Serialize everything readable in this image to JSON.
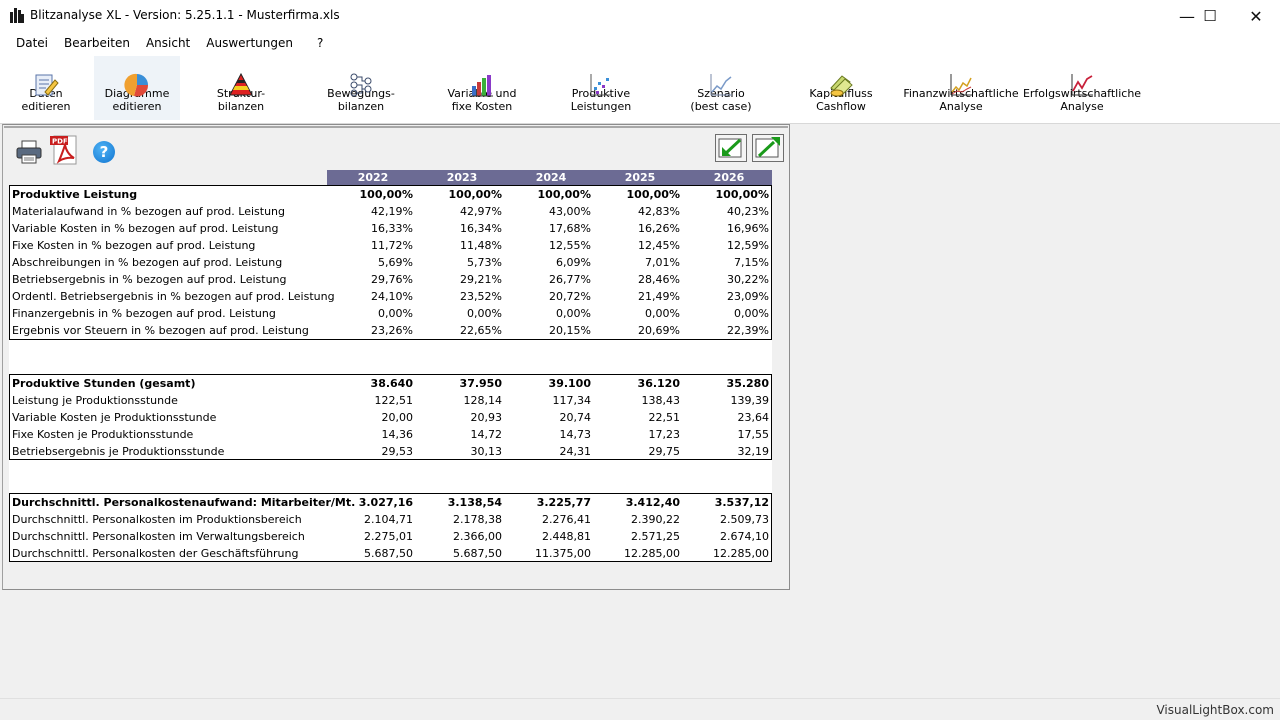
{
  "window": {
    "title": "Blitzanalyse XL - Version: 5.25.1.1 - Musterfirma.xls",
    "minimize": "—",
    "maximize": "☐",
    "close": "✕"
  },
  "menu": [
    "Datei",
    "Bearbeiten",
    "Ansicht",
    "Auswertungen",
    "?"
  ],
  "toolbar": [
    {
      "label": "Daten\neditieren",
      "icon": "edit-data-icon"
    },
    {
      "label": "Diagramme\neditieren",
      "icon": "diagram-icon"
    },
    {
      "label": "Struktur-\nbilanzen",
      "icon": "pyramid-icon"
    },
    {
      "label": "Bewegungs-\nbilanzen",
      "icon": "tree-icon"
    },
    {
      "label": "Variable und\nfixe Kosten",
      "icon": "bar-chart-icon"
    },
    {
      "label": "Produktive\nLeistungen",
      "icon": "scatter-icon"
    },
    {
      "label": "Szenario\n(best case)",
      "icon": "line-chart-icon"
    },
    {
      "label": "Kapitalfluss\nCashflow",
      "icon": "money-icon"
    },
    {
      "label": "Finanzwirtschaftliche\nAnalyse",
      "icon": "finance-chart-icon"
    },
    {
      "label": "Erfolgswirtschaftliche\nAnalyse",
      "icon": "success-chart-icon"
    }
  ],
  "pdf_label": "PDF",
  "help_label": "?",
  "table": {
    "years": [
      "2022",
      "2023",
      "2024",
      "2025",
      "2026"
    ],
    "block1": [
      {
        "label": "Produktive Leistung",
        "values": [
          "100,00%",
          "100,00%",
          "100,00%",
          "100,00%",
          "100,00%"
        ],
        "bold": true
      },
      {
        "label": "Materialaufwand in % bezogen auf prod. Leistung",
        "values": [
          "42,19%",
          "42,97%",
          "43,00%",
          "42,83%",
          "40,23%"
        ]
      },
      {
        "label": "Variable Kosten in % bezogen auf prod. Leistung",
        "values": [
          "16,33%",
          "16,34%",
          "17,68%",
          "16,26%",
          "16,96%"
        ]
      },
      {
        "label": "Fixe Kosten in % bezogen auf prod. Leistung",
        "values": [
          "11,72%",
          "11,48%",
          "12,55%",
          "12,45%",
          "12,59%"
        ]
      },
      {
        "label": "Abschreibungen in % bezogen auf prod. Leistung",
        "values": [
          "5,69%",
          "5,73%",
          "6,09%",
          "7,01%",
          "7,15%"
        ]
      },
      {
        "label": "Betriebsergebnis in % bezogen auf prod. Leistung",
        "values": [
          "29,76%",
          "29,21%",
          "26,77%",
          "28,46%",
          "30,22%"
        ]
      },
      {
        "label": "Ordentl. Betriebsergebnis in % bezogen auf prod. Leistung",
        "values": [
          "24,10%",
          "23,52%",
          "20,72%",
          "21,49%",
          "23,09%"
        ]
      },
      {
        "label": "Finanzergebnis in % bezogen auf prod. Leistung",
        "values": [
          "0,00%",
          "0,00%",
          "0,00%",
          "0,00%",
          "0,00%"
        ]
      },
      {
        "label": "Ergebnis vor Steuern in % bezogen auf prod. Leistung",
        "values": [
          "23,26%",
          "22,65%",
          "20,15%",
          "20,69%",
          "22,39%"
        ]
      }
    ],
    "block2": [
      {
        "label": "Produktive Stunden (gesamt)",
        "values": [
          "38.640",
          "37.950",
          "39.100",
          "36.120",
          "35.280"
        ],
        "bold": true
      },
      {
        "label": "Leistung je Produktionsstunde",
        "values": [
          "122,51",
          "128,14",
          "117,34",
          "138,43",
          "139,39"
        ]
      },
      {
        "label": "Variable Kosten je Produktionsstunde",
        "values": [
          "20,00",
          "20,93",
          "20,74",
          "22,51",
          "23,64"
        ]
      },
      {
        "label": "Fixe Kosten je Produktionsstunde",
        "values": [
          "14,36",
          "14,72",
          "14,73",
          "17,23",
          "17,55"
        ]
      },
      {
        "label": "Betriebsergebnis je Produktionsstunde",
        "values": [
          "29,53",
          "30,13",
          "24,31",
          "29,75",
          "32,19"
        ]
      }
    ],
    "block3": [
      {
        "label": "Durchschnittl.  Personalkostenaufwand:  Mitarbeiter/Mt.",
        "values": [
          "3.027,16",
          "3.138,54",
          "3.225,77",
          "3.412,40",
          "3.537,12"
        ],
        "bold": true
      },
      {
        "label": "Durchschnittl. Personalkosten im Produktionsbereich",
        "values": [
          "2.104,71",
          "2.178,38",
          "2.276,41",
          "2.390,22",
          "2.509,73"
        ]
      },
      {
        "label": "Durchschnittl. Personalkosten im Verwaltungsbereich",
        "values": [
          "2.275,01",
          "2.366,00",
          "2.448,81",
          "2.571,25",
          "2.674,10"
        ]
      },
      {
        "label": "Durchschnittl. Personalkosten der Geschäftsführung",
        "values": [
          "5.687,50",
          "5.687,50",
          "11.375,00",
          "12.285,00",
          "12.285,00"
        ]
      }
    ]
  },
  "status": "VisualLightBox.com",
  "colors": {
    "header_bg": "#6c6b94",
    "header_text": "#ffffff"
  }
}
